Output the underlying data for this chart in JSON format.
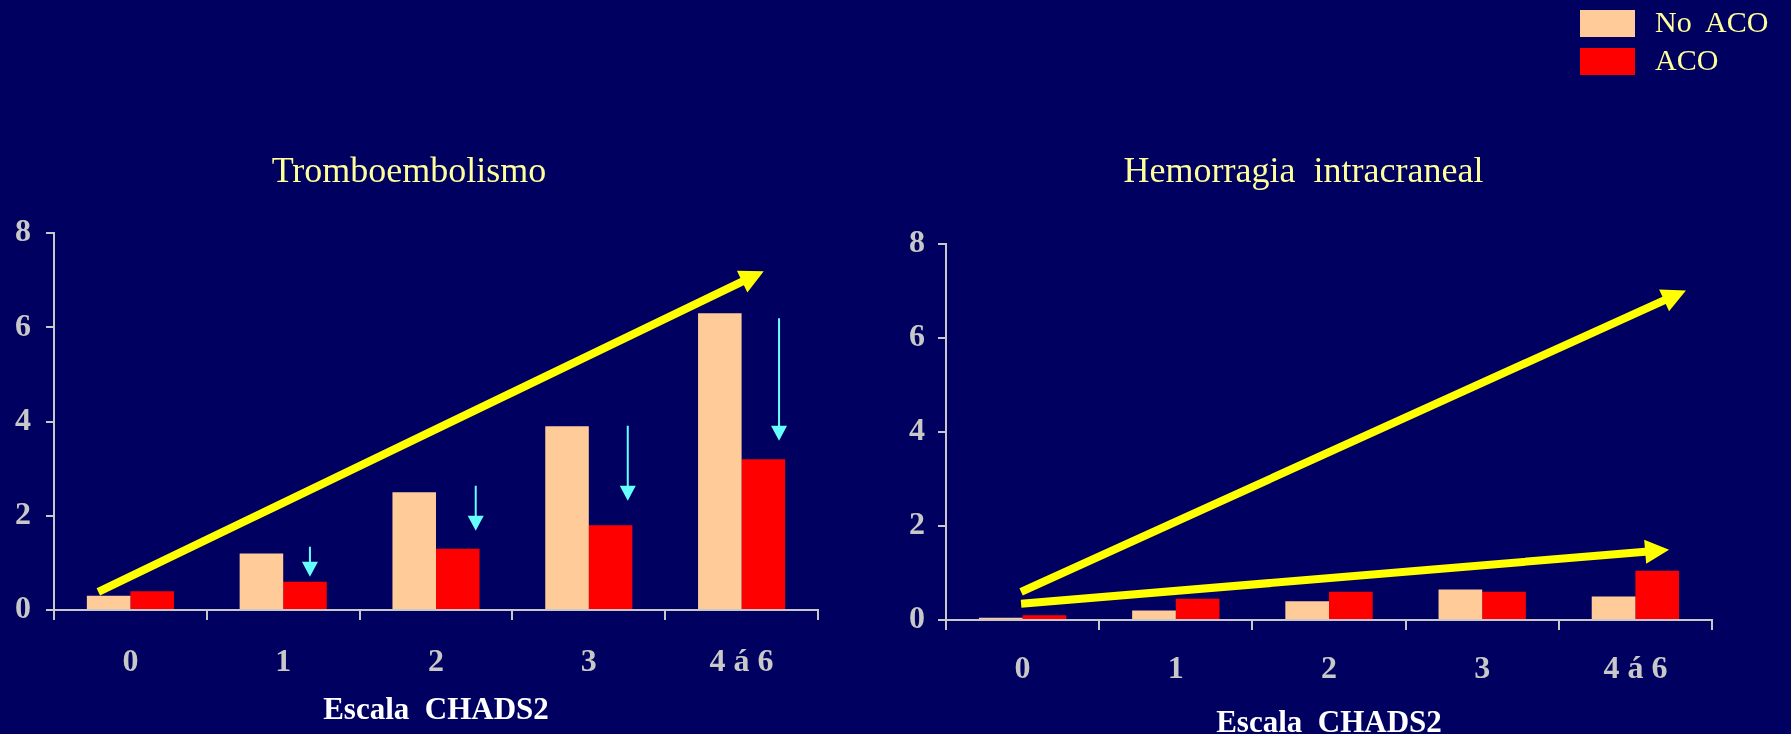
{
  "chart_data": [
    {
      "type": "bar",
      "title": "Tromboembolismo",
      "xlabel": "Escala  CHADS2",
      "categories": [
        "0",
        "1",
        "2",
        "3",
        "4 á 6"
      ],
      "series": [
        {
          "color": "#ffcc99",
          "values": [
            0.3,
            1.2,
            2.5,
            3.9,
            6.3
          ]
        },
        {
          "color": "#ff0000",
          "values": [
            0.4,
            0.6,
            1.3,
            1.8,
            3.2
          ]
        }
      ],
      "ylim": [
        0,
        8
      ],
      "yticks": [
        0,
        2,
        4,
        6,
        8
      ]
    },
    {
      "type": "bar",
      "title": "Hemorragia  intracraneal",
      "xlabel": "Escala  CHADS2",
      "categories": [
        "0",
        "1",
        "2",
        "3",
        "4 á 6"
      ],
      "series": [
        {
          "name": "No  ACO",
          "color": "#ffcc99",
          "values": [
            0.05,
            0.2,
            0.4,
            0.65,
            0.5
          ]
        },
        {
          "name": "ACO",
          "color": "#ff0000",
          "values": [
            0.1,
            0.45,
            0.6,
            0.6,
            1.05
          ]
        }
      ],
      "ylim": [
        0,
        8
      ],
      "yticks": [
        0,
        2,
        4,
        6,
        8
      ],
      "legend": "top right"
    }
  ]
}
